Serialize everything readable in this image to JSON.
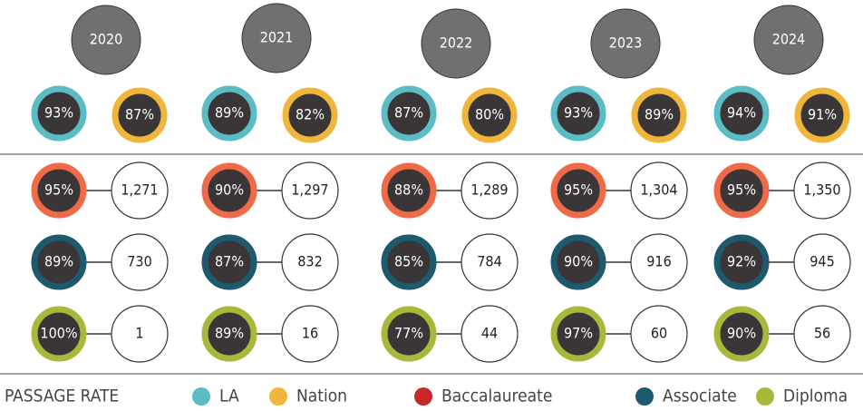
{
  "legend": {
    "title": "PASSAGE RATE",
    "items": [
      {
        "label": "LA",
        "color": "#5bbcc6"
      },
      {
        "label": "Nation",
        "color": "#f0b63c"
      },
      {
        "label": "Baccalaureate",
        "color": "#c8282a"
      },
      {
        "label": "Associate",
        "color": "#1d5a6e"
      },
      {
        "label": "Diploma",
        "color": "#a9b83a"
      }
    ]
  },
  "years": [
    {
      "year": "2020",
      "la": "93%",
      "nation": "87%",
      "baccalaureate": {
        "rate": "95%",
        "count": "1,271"
      },
      "associate": {
        "rate": "89%",
        "count": "730"
      },
      "diploma": {
        "rate": "100%",
        "count": "1"
      }
    },
    {
      "year": "2021",
      "la": "89%",
      "nation": "82%",
      "baccalaureate": {
        "rate": "90%",
        "count": "1,297"
      },
      "associate": {
        "rate": "87%",
        "count": "832"
      },
      "diploma": {
        "rate": "89%",
        "count": "16"
      }
    },
    {
      "year": "2022",
      "la": "87%",
      "nation": "80%",
      "baccalaureate": {
        "rate": "88%",
        "count": "1,289"
      },
      "associate": {
        "rate": "85%",
        "count": "784"
      },
      "diploma": {
        "rate": "77%",
        "count": "44"
      }
    },
    {
      "year": "2023",
      "la": "93%",
      "nation": "89%",
      "baccalaureate": {
        "rate": "95%",
        "count": "1,304"
      },
      "associate": {
        "rate": "90%",
        "count": "916"
      },
      "diploma": {
        "rate": "97%",
        "count": "60"
      }
    },
    {
      "year": "2024",
      "la": "94%",
      "nation": "91%",
      "baccalaureate": {
        "rate": "95%",
        "count": "1,350"
      },
      "associate": {
        "rate": "92%",
        "count": "945"
      },
      "diploma": {
        "rate": "90%",
        "count": "56"
      }
    }
  ]
}
